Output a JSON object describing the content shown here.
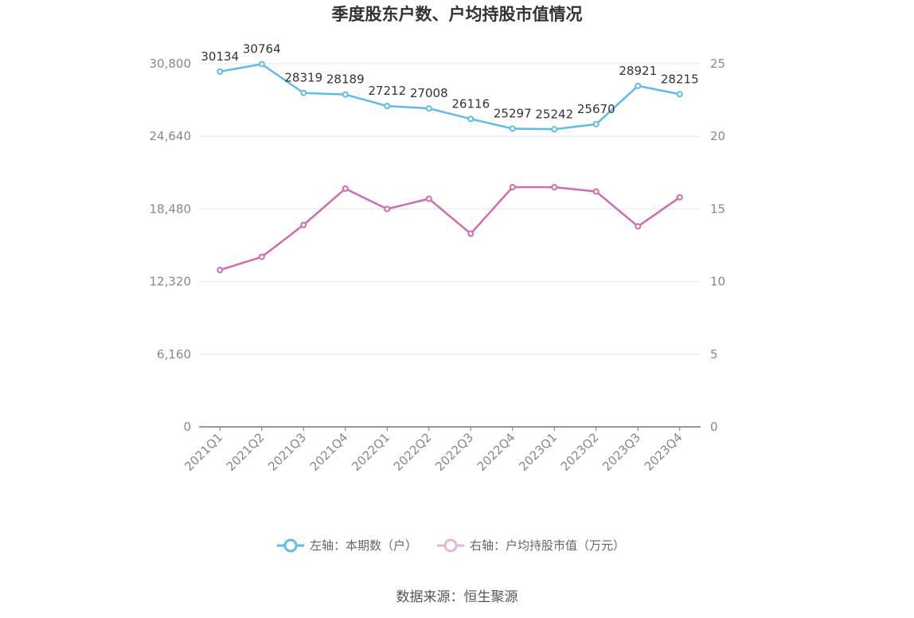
{
  "chart_data": {
    "type": "line",
    "title": "季度股东户数、户均持股市值情况",
    "categories": [
      "2021Q1",
      "2021Q2",
      "2021Q3",
      "2021Q4",
      "2022Q1",
      "2022Q2",
      "2022Q3",
      "2022Q4",
      "2023Q1",
      "2023Q2",
      "2023Q3",
      "2023Q4"
    ],
    "left_axis": {
      "ylim": [
        0,
        30800
      ],
      "ticks": [
        "0",
        "6,160",
        "12,320",
        "18,480",
        "24,640",
        "30,800"
      ],
      "tick_values": [
        0,
        6160,
        12320,
        18480,
        24640,
        30800
      ]
    },
    "right_axis": {
      "ylim": [
        0,
        25
      ],
      "ticks": [
        "0",
        "5",
        "10",
        "15",
        "20",
        "25"
      ],
      "tick_values": [
        0,
        5,
        10,
        15,
        20,
        25
      ]
    },
    "series": [
      {
        "name": "左轴：本期数（户）",
        "axis": "left",
        "color": "#5bbdec",
        "values": [
          30134,
          30764,
          28319,
          28189,
          27212,
          27008,
          26116,
          25297,
          25242,
          25670,
          28921,
          28215
        ],
        "labels": [
          "30134",
          "30764",
          "28319",
          "28189",
          "27212",
          "27008",
          "26116",
          "25297",
          "25242",
          "25670",
          "28921",
          "28215"
        ]
      },
      {
        "name": "右轴：户均持股市值（万元）",
        "axis": "right",
        "color": "#d36aaf",
        "values": [
          10.8,
          11.7,
          13.9,
          16.4,
          15.0,
          15.7,
          13.3,
          16.5,
          16.5,
          16.2,
          13.8,
          15.8
        ]
      }
    ],
    "grid": true,
    "legend_position": "bottom-center"
  },
  "source": "数据来源：恒生聚源"
}
